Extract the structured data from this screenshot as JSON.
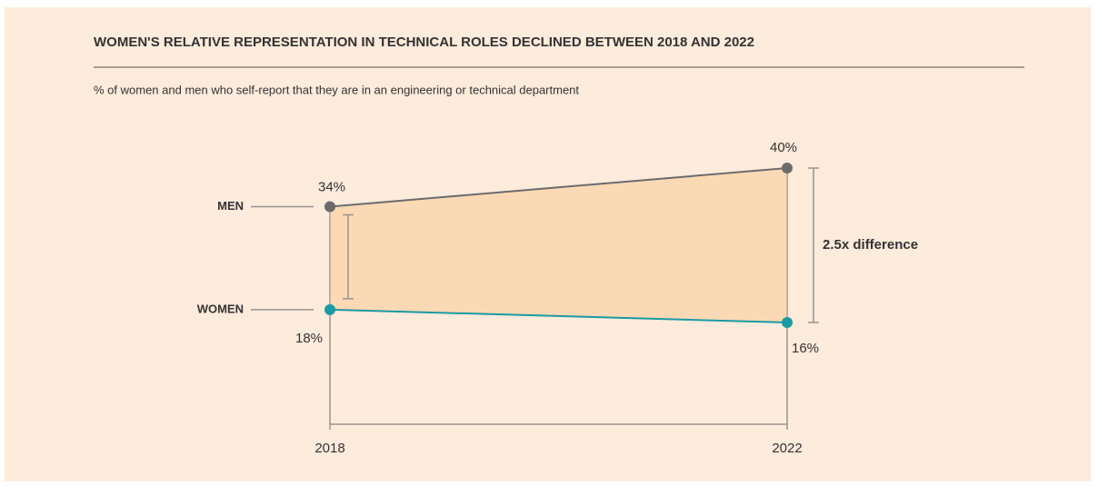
{
  "chart_data": {
    "type": "line",
    "title": "WOMEN'S RELATIVE REPRESENTATION IN TECHNICAL ROLES DECLINED BETWEEN 2018 AND 2022",
    "subtitle": "% of women and men who self-report that they are in an engineering or technical department",
    "categories": [
      "2018",
      "2022"
    ],
    "series": [
      {
        "name": "MEN",
        "color": "#6b6b6b",
        "values": [
          34,
          40
        ],
        "value_labels": [
          "34%",
          "40%"
        ]
      },
      {
        "name": "WOMEN",
        "color": "#1b9aa3",
        "values": [
          18,
          16
        ],
        "value_labels": [
          "18%",
          "16%"
        ]
      }
    ],
    "annotation": "2.5x difference",
    "fill_color": "#fcd9b5"
  }
}
